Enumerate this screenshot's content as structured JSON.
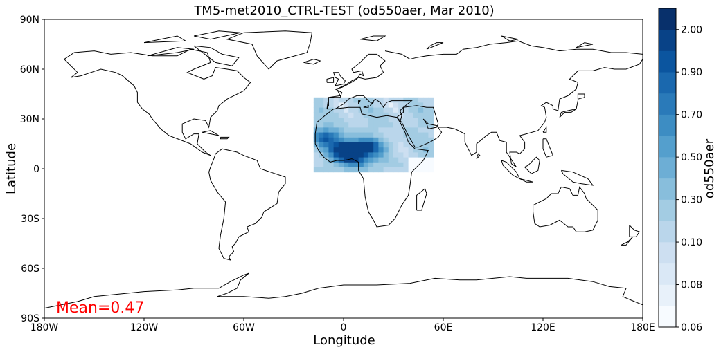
{
  "chart_data": {
    "type": "heatmap",
    "title": "TM5-met2010_CTRL-TEST (od550aer, Mar 2010)",
    "xlabel": "Longitude",
    "ylabel": "Latitude",
    "xlim": [
      -180,
      180
    ],
    "ylim": [
      -90,
      90
    ],
    "x_ticks": [
      {
        "value": -180,
        "label": "180W"
      },
      {
        "value": -120,
        "label": "120W"
      },
      {
        "value": -60,
        "label": "60W"
      },
      {
        "value": 0,
        "label": "0"
      },
      {
        "value": 60,
        "label": "60E"
      },
      {
        "value": 120,
        "label": "120E"
      },
      {
        "value": 180,
        "label": "180E"
      }
    ],
    "y_ticks": [
      {
        "value": 90,
        "label": "90N"
      },
      {
        "value": 60,
        "label": "60N"
      },
      {
        "value": 30,
        "label": "30N"
      },
      {
        "value": 0,
        "label": "0"
      },
      {
        "value": -30,
        "label": "30S"
      },
      {
        "value": -60,
        "label": "60S"
      },
      {
        "value": -90,
        "label": "90S"
      }
    ],
    "annotation": {
      "text": "Mean=0.47",
      "color": "#ff0000"
    },
    "colorbar": {
      "label": "od550aer",
      "levels": [
        0.06,
        0.07,
        0.08,
        0.09,
        0.1,
        0.2,
        0.3,
        0.4,
        0.5,
        0.6,
        0.7,
        0.8,
        0.9,
        1.0,
        2.0,
        3.0
      ],
      "tick_labels": [
        "0.06",
        "0.08",
        "0.10",
        "0.30",
        "0.50",
        "0.70",
        "0.90",
        "2.00"
      ],
      "colors": [
        "#f7fbff",
        "#e8f1fa",
        "#dae8f6",
        "#cddff1",
        "#bad6eb",
        "#a3cce3",
        "#88bedc",
        "#6daed5",
        "#549fcd",
        "#3d8dc3",
        "#2a7ab9",
        "#1a68ae",
        "#0b559f",
        "#084287",
        "#08306b"
      ]
    },
    "grid": false,
    "region": {
      "lon_range": [
        -18,
        52
      ],
      "lat_range": [
        -2,
        42
      ],
      "cell_deg": 3
    },
    "aod_blobs": [
      {
        "lon": 2,
        "lat": 11,
        "value": 1.3
      },
      {
        "lon": -10,
        "lat": 19,
        "value": 0.65
      },
      {
        "lon": 15,
        "lat": 13,
        "value": 0.7
      },
      {
        "lon": 8,
        "lat": 5,
        "value": 0.5
      }
    ],
    "aod_background": 0.28
  }
}
